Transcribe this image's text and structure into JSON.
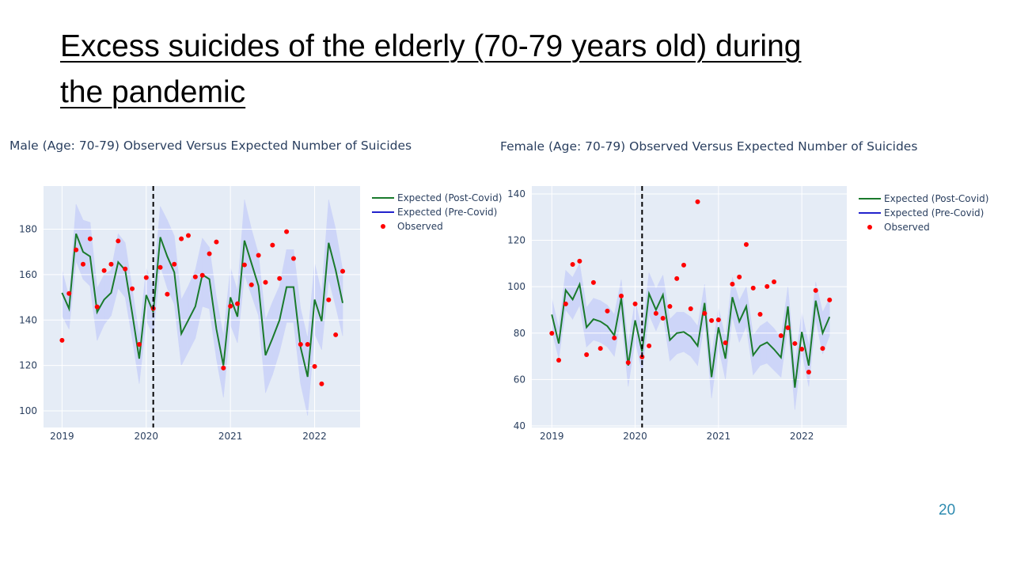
{
  "slide": {
    "title": "Excess suicides of the elderly (70-79 years old) during the pandemic",
    "page_number": "20"
  },
  "chart_data": [
    {
      "type": "line",
      "title": "Male (Age: 70-79) Observed Versus Expected Number of Suicides",
      "x": [
        "2019-01",
        "2019-02",
        "2019-03",
        "2019-04",
        "2019-05",
        "2019-06",
        "2019-07",
        "2019-08",
        "2019-09",
        "2019-10",
        "2019-11",
        "2019-12",
        "2020-01",
        "2020-02",
        "2020-03",
        "2020-04",
        "2020-05",
        "2020-06",
        "2020-07",
        "2020-08",
        "2020-09",
        "2020-10",
        "2020-11",
        "2020-12",
        "2021-01",
        "2021-02",
        "2021-03",
        "2021-04",
        "2021-05",
        "2021-06",
        "2021-07",
        "2021-08",
        "2021-09",
        "2021-10",
        "2021-11",
        "2021-12",
        "2022-01",
        "2022-02",
        "2022-03",
        "2022-04",
        "2022-05"
      ],
      "series": [
        {
          "name": "Expected (Post-Covid)",
          "color": "#1a7a2c",
          "values": [
            152,
            145,
            178,
            170,
            168,
            143.5,
            149,
            152,
            165.5,
            162,
            143,
            123,
            151,
            143.5,
            176.5,
            168,
            161,
            134,
            140,
            146,
            160,
            158,
            136,
            120,
            150,
            141.5,
            175,
            165,
            155,
            124.5,
            132,
            140,
            154.5,
            154.5,
            128,
            115,
            149,
            139.5,
            174,
            162,
            147.5
          ]
        },
        {
          "name": "Expected (Pre-Covid)",
          "color": "#2222cc"
        },
        {
          "name": "Observed",
          "color": "#ff0000",
          "values": [
            131.1,
            151.7,
            170.9,
            164.6,
            175.8,
            145.8,
            161.8,
            164.6,
            174.8,
            162.5,
            153.8,
            129.3,
            158.7,
            145.1,
            163.2,
            151.4,
            164.6,
            175.8,
            177.2,
            159,
            159.7,
            169.2,
            174.4,
            118.9,
            146.1,
            147.2,
            164.3,
            155.5,
            168.5,
            156.6,
            173,
            158.3,
            178.9,
            167.1,
            129.3,
            129.3,
            119.6,
            111.9,
            148.9,
            133.5,
            161.5
          ]
        }
      ],
      "band": {
        "color": "#cdd5f8",
        "upper": [
          162,
          150,
          191,
          184,
          183,
          154,
          160,
          162,
          178,
          174,
          154,
          133,
          163,
          154,
          190,
          184,
          177,
          149,
          155,
          162,
          176,
          172,
          150,
          133,
          163,
          153,
          193,
          180,
          169,
          140,
          148,
          155,
          171,
          171,
          145,
          132,
          165,
          152,
          193,
          180,
          162
        ],
        "lower": [
          142,
          136,
          166,
          158,
          155,
          131,
          138,
          142,
          154,
          150,
          132,
          112,
          140,
          133,
          164,
          154,
          147,
          120,
          126,
          132,
          146,
          145,
          123,
          106,
          138,
          130,
          160,
          151,
          142,
          108,
          116,
          126,
          139,
          139,
          112,
          98,
          134,
          127,
          158,
          146,
          133
        ]
      },
      "vline": "2020-02",
      "xlim": [
        2018.78,
        2022.54
      ],
      "xticks": [
        2019,
        2020,
        2021,
        2022
      ],
      "ylim": [
        92.7,
        199
      ],
      "yticks": [
        100,
        120,
        140,
        160,
        180
      ],
      "grid": true,
      "legend": "right"
    },
    {
      "type": "line",
      "title": "Female (Age: 70-79) Observed Versus Expected Number of Suicides",
      "x": [
        "2019-01",
        "2019-02",
        "2019-03",
        "2019-04",
        "2019-05",
        "2019-06",
        "2019-07",
        "2019-08",
        "2019-09",
        "2019-10",
        "2019-11",
        "2019-12",
        "2020-01",
        "2020-02",
        "2020-03",
        "2020-04",
        "2020-05",
        "2020-06",
        "2020-07",
        "2020-08",
        "2020-09",
        "2020-10",
        "2020-11",
        "2020-12",
        "2021-01",
        "2021-02",
        "2021-03",
        "2021-04",
        "2021-05",
        "2021-06",
        "2021-07",
        "2021-08",
        "2021-09",
        "2021-10",
        "2021-11",
        "2021-12",
        "2022-01",
        "2022-02",
        "2022-03",
        "2022-04",
        "2022-05"
      ],
      "series": [
        {
          "name": "Expected (Post-Covid)",
          "color": "#1a7a2c",
          "values": [
            88,
            75.5,
            98.5,
            94.5,
            101,
            82.5,
            86,
            85,
            83,
            79,
            95,
            66,
            85.5,
            72,
            97,
            90,
            96.5,
            77,
            80,
            80.5,
            78.5,
            74.5,
            93,
            61,
            82.5,
            69,
            95.5,
            85,
            91.5,
            70.5,
            74.5,
            76,
            73,
            69.5,
            91.5,
            56.5,
            80.5,
            66,
            94,
            80,
            87
          ]
        },
        {
          "name": "Expected (Pre-Covid)",
          "color": "#2222cc"
        },
        {
          "name": "Observed",
          "color": "#ff0000",
          "values": [
            79.9,
            68.3,
            92.6,
            109.6,
            111,
            70.7,
            101.8,
            73.4,
            89.5,
            77.9,
            96,
            67.3,
            92.6,
            69.7,
            74.5,
            88.5,
            86.4,
            91.5,
            103.5,
            109.3,
            90.5,
            136.6,
            88.5,
            85.4,
            85.7,
            75.8,
            101.1,
            104.2,
            118.2,
            99.4,
            88.1,
            100.1,
            102.1,
            78.9,
            82.3,
            75.5,
            73.1,
            63.2,
            98.4,
            73.4,
            94.3
          ]
        }
      ],
      "band": {
        "color": "#cdd5f8",
        "upper": [
          95,
          82,
          107,
          104,
          110,
          91,
          95,
          94,
          92,
          88,
          103,
          75,
          94,
          81,
          106,
          99,
          105,
          86,
          89,
          89,
          87,
          83,
          101,
          70,
          91,
          78,
          104,
          94,
          100,
          79,
          83,
          85,
          82,
          78,
          100,
          66,
          89,
          75,
          102,
          89,
          95
        ],
        "lower": [
          81,
          69,
          90,
          86,
          92,
          74,
          77,
          76,
          74,
          70,
          87,
          57,
          77,
          63,
          88,
          81,
          88,
          68,
          71,
          72,
          70,
          66,
          85,
          52,
          74,
          60,
          87,
          76,
          83,
          62,
          66,
          67,
          64,
          61,
          83,
          47,
          72,
          57,
          86,
          71,
          79
        ]
      },
      "vline": "2020-02",
      "xlim": [
        2018.76,
        2022.54
      ],
      "xticks": [
        2019,
        2020,
        2021,
        2022
      ],
      "ylim": [
        39.3,
        143.4
      ],
      "yticks": [
        40,
        60,
        80,
        100,
        120,
        140
      ],
      "grid": true,
      "legend": "right"
    }
  ]
}
